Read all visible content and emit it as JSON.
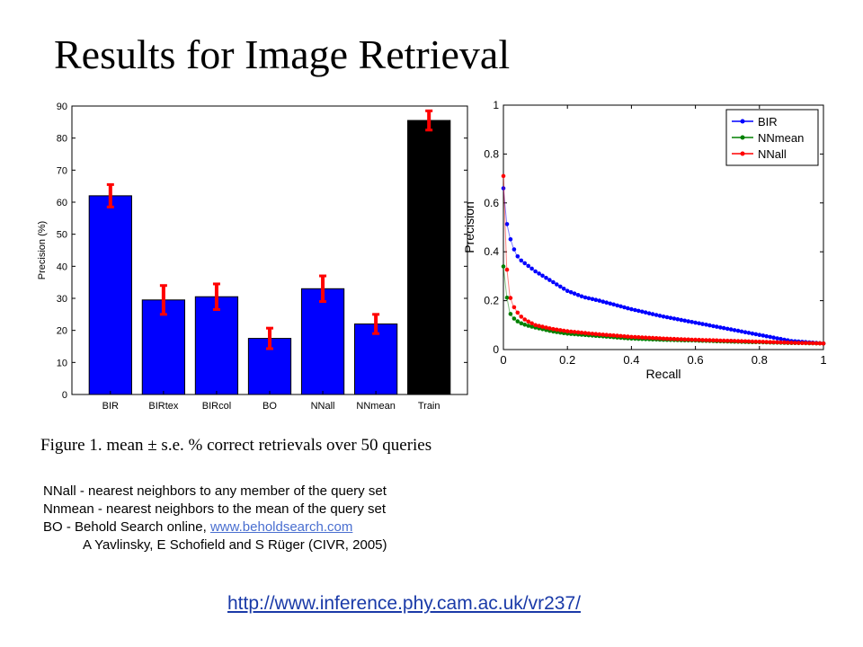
{
  "title": "Results for Image Retrieval",
  "caption": "Figure 1. mean ± s.e. % correct retrievals over 50 queries",
  "notes": {
    "line1": "NNall - nearest neighbors to any member of the query set",
    "line2": "Nnmean - nearest neighbors to the mean of the query set",
    "line3_prefix": "BO - Behold Search online, ",
    "line3_link": "www.beholdsearch.com",
    "citation": "A Yavlinsky, E Schofield and S Rüger (CIVR, 2005)"
  },
  "footer_link": "http://www.inference.phy.cam.ac.uk/vr237/",
  "chart_data": [
    {
      "type": "bar",
      "categories": [
        "BIR",
        "BIRtex",
        "BIRcol",
        "BO",
        "NNall",
        "NNmean",
        "Train"
      ],
      "values": [
        62,
        29.5,
        30.5,
        17.5,
        33,
        22,
        85.5
      ],
      "errors": [
        3.5,
        4.5,
        4,
        3.2,
        4,
        3,
        3
      ],
      "bar_colors": [
        "#0000ff",
        "#0000ff",
        "#0000ff",
        "#0000ff",
        "#0000ff",
        "#0000ff",
        "#000000"
      ],
      "error_color": "#ff0000",
      "ylabel": "Precision (%)",
      "ylim": [
        0,
        90
      ],
      "yticks": [
        "0",
        "10",
        "20",
        "30",
        "40",
        "50",
        "60",
        "70",
        "80",
        "90"
      ],
      "grid": false
    },
    {
      "type": "line",
      "xlabel": "Recall",
      "ylabel": "Precision",
      "xlim": [
        0,
        1
      ],
      "ylim": [
        0,
        1
      ],
      "xticks": [
        "0",
        "0.2",
        "0.4",
        "0.6",
        "0.8",
        "1"
      ],
      "yticks": [
        "0",
        "0.2",
        "0.4",
        "0.6",
        "0.8",
        "1"
      ],
      "legend_position": "top-right",
      "grid": false,
      "series": [
        {
          "name": "BIR",
          "color": "#0000ff",
          "x": [
            0,
            0.01,
            0.02,
            0.03,
            0.04,
            0.05,
            0.07,
            0.1,
            0.15,
            0.2,
            0.25,
            0.3,
            0.4,
            0.5,
            0.6,
            0.7,
            0.8,
            0.9,
            1.0
          ],
          "y": [
            0.66,
            0.52,
            0.46,
            0.42,
            0.39,
            0.37,
            0.35,
            0.32,
            0.28,
            0.24,
            0.215,
            0.2,
            0.165,
            0.135,
            0.11,
            0.085,
            0.06,
            0.035,
            0.025
          ]
        },
        {
          "name": "NNmean",
          "color": "#008000",
          "x": [
            0,
            0.01,
            0.02,
            0.03,
            0.04,
            0.05,
            0.07,
            0.1,
            0.15,
            0.2,
            0.3,
            0.4,
            0.5,
            0.6,
            0.7,
            0.8,
            0.9,
            1.0
          ],
          "y": [
            0.34,
            0.22,
            0.15,
            0.13,
            0.12,
            0.11,
            0.1,
            0.09,
            0.075,
            0.065,
            0.055,
            0.045,
            0.04,
            0.037,
            0.033,
            0.03,
            0.027,
            0.025
          ]
        },
        {
          "name": "NNall",
          "color": "#ff0000",
          "x": [
            0,
            0.01,
            0.02,
            0.03,
            0.04,
            0.05,
            0.07,
            0.1,
            0.15,
            0.2,
            0.3,
            0.4,
            0.5,
            0.6,
            0.7,
            0.8,
            0.9,
            1.0
          ],
          "y": [
            0.71,
            0.34,
            0.22,
            0.18,
            0.16,
            0.14,
            0.12,
            0.1,
            0.085,
            0.075,
            0.062,
            0.052,
            0.045,
            0.04,
            0.036,
            0.032,
            0.028,
            0.025
          ]
        }
      ]
    }
  ]
}
